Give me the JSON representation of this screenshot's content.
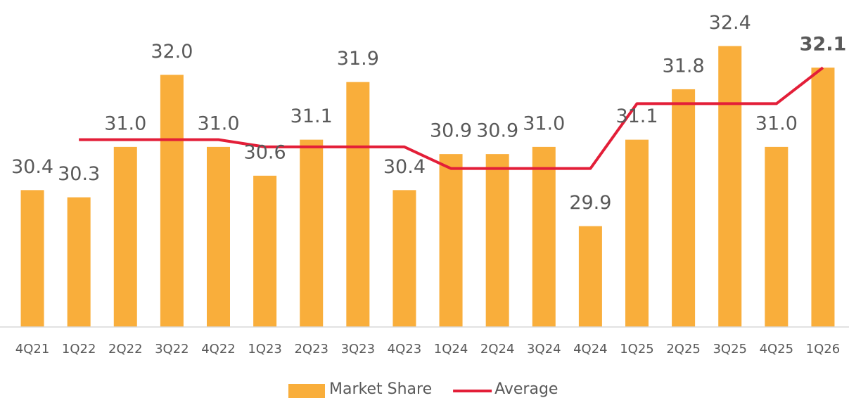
{
  "chart_data": {
    "type": "bar",
    "categories": [
      "4Q21",
      "1Q22",
      "2Q22",
      "3Q22",
      "4Q22",
      "1Q23",
      "2Q23",
      "3Q23",
      "4Q23",
      "1Q24",
      "2Q24",
      "3Q24",
      "4Q24",
      "1Q25",
      "2Q25",
      "3Q25",
      "4Q25",
      "1Q26"
    ],
    "series": [
      {
        "name": "Market Share",
        "type": "bar",
        "color": "#f9ae3b",
        "values": [
          30.4,
          30.3,
          31.0,
          32.0,
          31.0,
          30.6,
          31.1,
          31.9,
          30.4,
          30.9,
          30.9,
          31.0,
          29.9,
          31.1,
          31.8,
          32.4,
          31.0,
          32.1
        ],
        "value_labels": [
          "30.4",
          "30.3",
          "31.0",
          "32.0",
          "31.0",
          "30.6",
          "31.1",
          "31.9",
          "30.4",
          "30.9",
          "30.9",
          "31.0",
          "29.9",
          "31.1",
          "31.8",
          "32.4",
          "31.0",
          "32.1"
        ]
      },
      {
        "name": "Average",
        "type": "line",
        "color": "#e31e38",
        "values": [
          null,
          31.1,
          31.1,
          31.1,
          31.1,
          31.0,
          31.0,
          31.0,
          31.0,
          30.7,
          30.7,
          30.7,
          30.7,
          31.6,
          31.6,
          31.6,
          31.6,
          32.1
        ]
      }
    ],
    "ylim": [
      28.5,
      33
    ],
    "legend": "bottom"
  }
}
